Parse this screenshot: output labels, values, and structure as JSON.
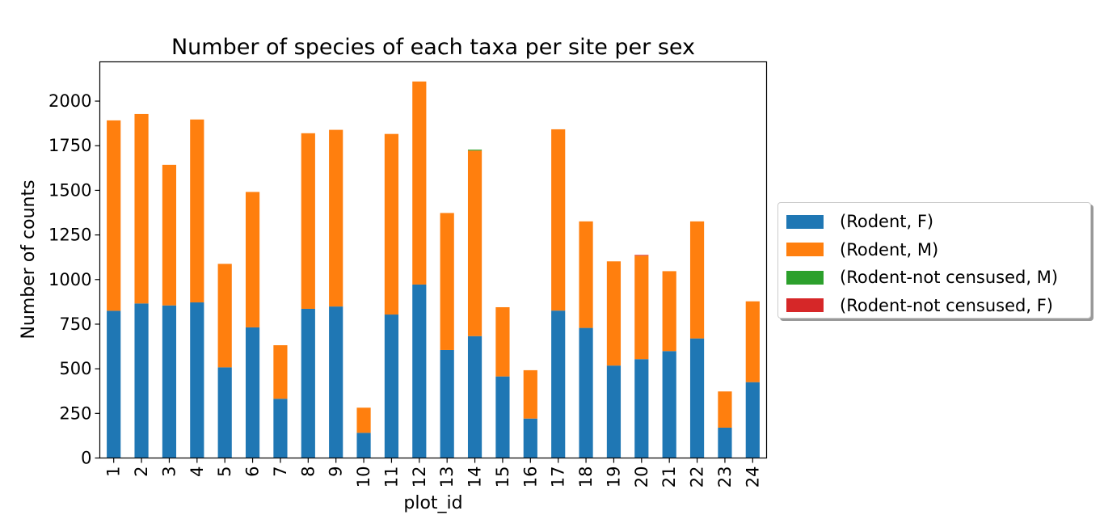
{
  "chart_data": {
    "type": "bar",
    "stacked": true,
    "title": "Number of species of each taxa per site per sex",
    "xlabel": "plot_id",
    "ylabel": "Number of counts",
    "ylim": [
      0,
      2220
    ],
    "yticks": [
      0,
      250,
      500,
      750,
      1000,
      1250,
      1500,
      1750,
      2000
    ],
    "categories": [
      "1",
      "2",
      "3",
      "4",
      "5",
      "6",
      "7",
      "8",
      "9",
      "10",
      "11",
      "12",
      "13",
      "14",
      "15",
      "16",
      "17",
      "18",
      "19",
      "20",
      "21",
      "22",
      "23",
      "24"
    ],
    "series": [
      {
        "name": "(Rodent, F)",
        "color": "#1f77b4",
        "values": [
          825,
          866,
          855,
          872,
          508,
          732,
          332,
          836,
          849,
          141,
          804,
          972,
          605,
          683,
          457,
          221,
          826,
          729,
          518,
          554,
          599,
          670,
          170,
          425
        ]
      },
      {
        "name": "(Rodent, M)",
        "color": "#ff7f0e",
        "values": [
          1067,
          1062,
          788,
          1025,
          580,
          759,
          300,
          984,
          990,
          141,
          1012,
          1138,
          768,
          1040,
          388,
          271,
          1016,
          597,
          584,
          580,
          448,
          656,
          203,
          453
        ]
      },
      {
        "name": "(Rodent-not censused, M)",
        "color": "#2ca02c",
        "values": [
          0,
          0,
          0,
          0,
          0,
          0,
          0,
          0,
          0,
          0,
          0,
          0,
          0,
          5,
          0,
          0,
          0,
          0,
          0,
          0,
          0,
          0,
          0,
          0
        ]
      },
      {
        "name": "(Rodent-not censused, F)",
        "color": "#d62728",
        "values": [
          0,
          0,
          0,
          0,
          0,
          0,
          0,
          0,
          0,
          0,
          0,
          0,
          0,
          0,
          0,
          0,
          0,
          0,
          0,
          4,
          0,
          0,
          0,
          0
        ]
      }
    ],
    "legend_position": "right",
    "grid": false
  }
}
